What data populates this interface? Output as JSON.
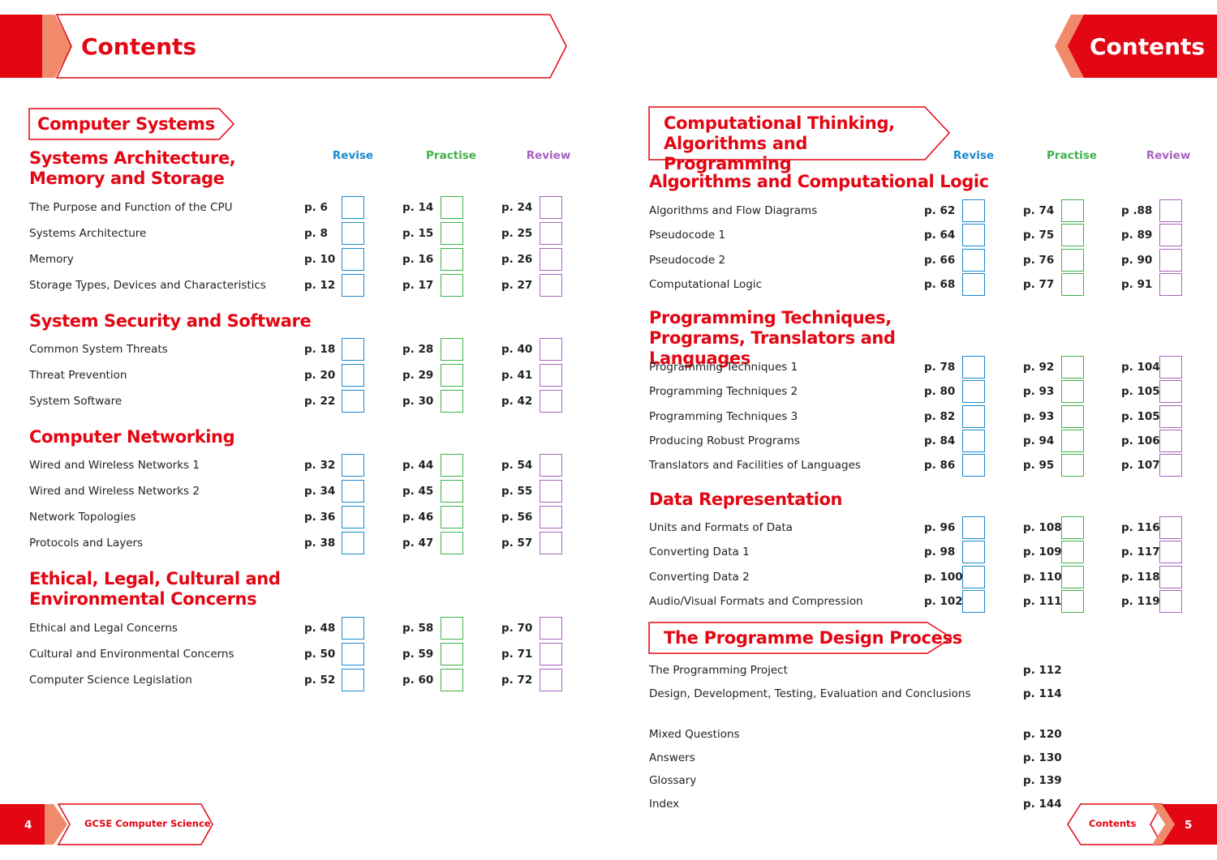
{
  "left_page": {
    "header": "Contents",
    "section": "Computer Systems",
    "columns": [
      "Revise",
      "Practise",
      "Review"
    ],
    "topics": [
      {
        "title": "Systems Architecture, Memory and Storage",
        "items": [
          {
            "name": "The Purpose and Function of the CPU",
            "pages": [
              "p. 6",
              "p. 14",
              "p. 24"
            ]
          },
          {
            "name": "Systems Architecture",
            "pages": [
              "p. 8",
              "p. 15",
              "p. 25"
            ]
          },
          {
            "name": "Memory",
            "pages": [
              "p. 10",
              "p. 16",
              "p. 26"
            ]
          },
          {
            "name": "Storage Types, Devices and Characteristics",
            "pages": [
              "p. 12",
              "p. 17",
              "p. 27"
            ]
          }
        ]
      },
      {
        "title": "System Security and Software",
        "items": [
          {
            "name": "Common System Threats",
            "pages": [
              "p. 18",
              "p. 28",
              "p. 40"
            ]
          },
          {
            "name": "Threat Prevention",
            "pages": [
              "p. 20",
              "p. 29",
              "p. 41"
            ]
          },
          {
            "name": "System Software",
            "pages": [
              "p. 22",
              "p. 30",
              "p. 42"
            ]
          }
        ]
      },
      {
        "title": "Computer Networking",
        "items": [
          {
            "name": "Wired and Wireless Networks 1",
            "pages": [
              "p. 32",
              "p. 44",
              "p. 54"
            ]
          },
          {
            "name": "Wired and Wireless Networks 2",
            "pages": [
              "p. 34",
              "p. 45",
              "p. 55"
            ]
          },
          {
            "name": "Network Topologies",
            "pages": [
              "p. 36",
              "p. 46",
              "p. 56"
            ]
          },
          {
            "name": "Protocols and Layers",
            "pages": [
              "p. 38",
              "p. 47",
              "p. 57"
            ]
          }
        ]
      },
      {
        "title": "Ethical, Legal, Cultural and Environmental Concerns",
        "items": [
          {
            "name": "Ethical and Legal Concerns",
            "pages": [
              "p. 48",
              "p. 58",
              "p. 70"
            ]
          },
          {
            "name": "Cultural and Environmental Concerns",
            "pages": [
              "p. 50",
              "p. 59",
              "p. 71"
            ]
          },
          {
            "name": "Computer Science Legislation",
            "pages": [
              "p. 52",
              "p. 60",
              "p. 72"
            ]
          }
        ]
      }
    ],
    "footer": {
      "page_number": "4",
      "book_title": "GCSE Computer Science"
    }
  },
  "right_page": {
    "header": "Contents",
    "section": "Computational Thinking, Algorithms and Programming",
    "columns": [
      "Revise",
      "Practise",
      "Review"
    ],
    "topics": [
      {
        "title": "Algorithms and Computational Logic",
        "items": [
          {
            "name": "Algorithms and Flow Diagrams",
            "pages": [
              "p. 62",
              "p. 74",
              "p .88"
            ]
          },
          {
            "name": "Pseudocode 1",
            "pages": [
              "p. 64",
              "p. 75",
              "p. 89"
            ]
          },
          {
            "name": "Pseudocode 2",
            "pages": [
              "p. 66",
              "p. 76",
              "p. 90"
            ]
          },
          {
            "name": "Computational Logic",
            "pages": [
              "p. 68",
              "p. 77",
              "p. 91"
            ]
          }
        ]
      },
      {
        "title": "Programming Techniques, Programs, Translators and Languages",
        "items": [
          {
            "name": "Programming Techniques 1",
            "pages": [
              "p. 78",
              "p. 92",
              "p. 104"
            ]
          },
          {
            "name": "Programming Techniques 2",
            "pages": [
              "p. 80",
              "p. 93",
              "p. 105"
            ]
          },
          {
            "name": "Programming Techniques 3",
            "pages": [
              "p. 82",
              "p. 93",
              "p. 105"
            ]
          },
          {
            "name": "Producing Robust Programs",
            "pages": [
              "p. 84",
              "p. 94",
              "p. 106"
            ]
          },
          {
            "name": "Translators and Facilities of Languages",
            "pages": [
              "p. 86",
              "p. 95",
              "p. 107"
            ]
          }
        ]
      },
      {
        "title": "Data Representation",
        "items": [
          {
            "name": "Units and Formats of Data",
            "pages": [
              "p. 96",
              "p. 108",
              "p. 116"
            ]
          },
          {
            "name": "Converting Data 1",
            "pages": [
              "p. 98",
              "p. 109",
              "p. 117"
            ]
          },
          {
            "name": "Converting Data 2",
            "pages": [
              "p. 100",
              "p. 110",
              "p. 118"
            ]
          },
          {
            "name": "Audio/Visual Formats and Compression",
            "pages": [
              "p. 102",
              "p. 111",
              "p. 119"
            ]
          }
        ]
      }
    ],
    "section2": {
      "title": "The Programme Design Process",
      "items": [
        {
          "name": "The Programming Project",
          "page": "p. 112"
        },
        {
          "name": "Design, Development, Testing, Evaluation and Conclusions",
          "page": "p. 114"
        }
      ]
    },
    "extras": [
      {
        "name": "Mixed Questions",
        "page": "p. 120"
      },
      {
        "name": "Answers",
        "page": "p. 130"
      },
      {
        "name": "Glossary",
        "page": "p. 139"
      },
      {
        "name": "Index",
        "page": "p. 144"
      }
    ],
    "footer": {
      "label": "Contents",
      "page_number": "5"
    }
  }
}
